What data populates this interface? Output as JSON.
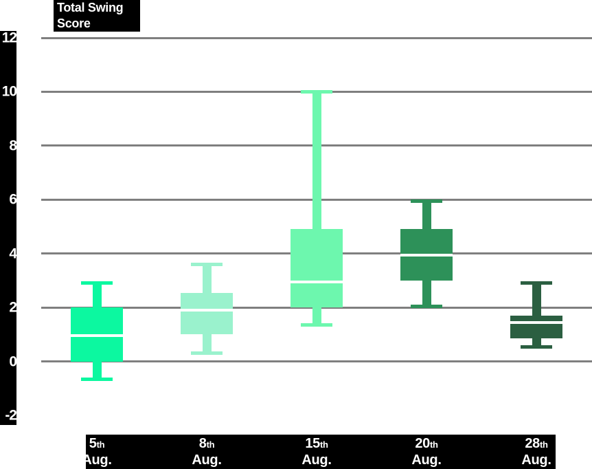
{
  "title": {
    "line1": "Total Swing",
    "line2": "Score"
  },
  "colors": {
    "background": "#ffffff",
    "axis_strip": "#000000",
    "gridline": "#7f7f7f",
    "label_text": "#ffffff",
    "median_line": "#ffffff"
  },
  "chart_data": {
    "type": "boxplot",
    "title": "Total Swing Score",
    "categories": [
      "5th Aug.",
      "8th Aug.",
      "15th Aug.",
      "20th Aug.",
      "28th Aug."
    ],
    "x_ticks": [
      {
        "day": "5",
        "suffix": "th",
        "month": "Aug."
      },
      {
        "day": "8",
        "suffix": "th",
        "month": "Aug."
      },
      {
        "day": "15",
        "suffix": "th",
        "month": "Aug."
      },
      {
        "day": "20",
        "suffix": "th",
        "month": "Aug."
      },
      {
        "day": "28",
        "suffix": "th",
        "month": "Aug."
      }
    ],
    "series": [
      {
        "name": "5th Aug.",
        "low": -0.65,
        "q1": 0.0,
        "median": 0.95,
        "q3": 2.0,
        "high": 2.9,
        "color": "#0cf8a0"
      },
      {
        "name": "8th Aug.",
        "low": 0.3,
        "q1": 1.0,
        "median": 1.9,
        "q3": 2.55,
        "high": 3.6,
        "color": "#9af2cd"
      },
      {
        "name": "15th Aug.",
        "low": 1.35,
        "q1": 2.0,
        "median": 2.95,
        "q3": 4.9,
        "high": 10.0,
        "color": "#6df7ae"
      },
      {
        "name": "20th Aug.",
        "low": 2.05,
        "q1": 3.0,
        "median": 3.95,
        "q3": 4.9,
        "high": 5.95,
        "color": "#2d9159"
      },
      {
        "name": "28th Aug.",
        "low": 0.55,
        "q1": 0.85,
        "median": 1.45,
        "q3": 1.7,
        "high": 2.9,
        "color": "#2b5f41"
      }
    ],
    "y_ticks": [
      12,
      10,
      8,
      6,
      4,
      2,
      0,
      -2
    ],
    "gridline_ticks": [
      12,
      10,
      8,
      6,
      4,
      2,
      0
    ],
    "ylim": [
      -2,
      12
    ],
    "grid": true,
    "legend": false
  }
}
